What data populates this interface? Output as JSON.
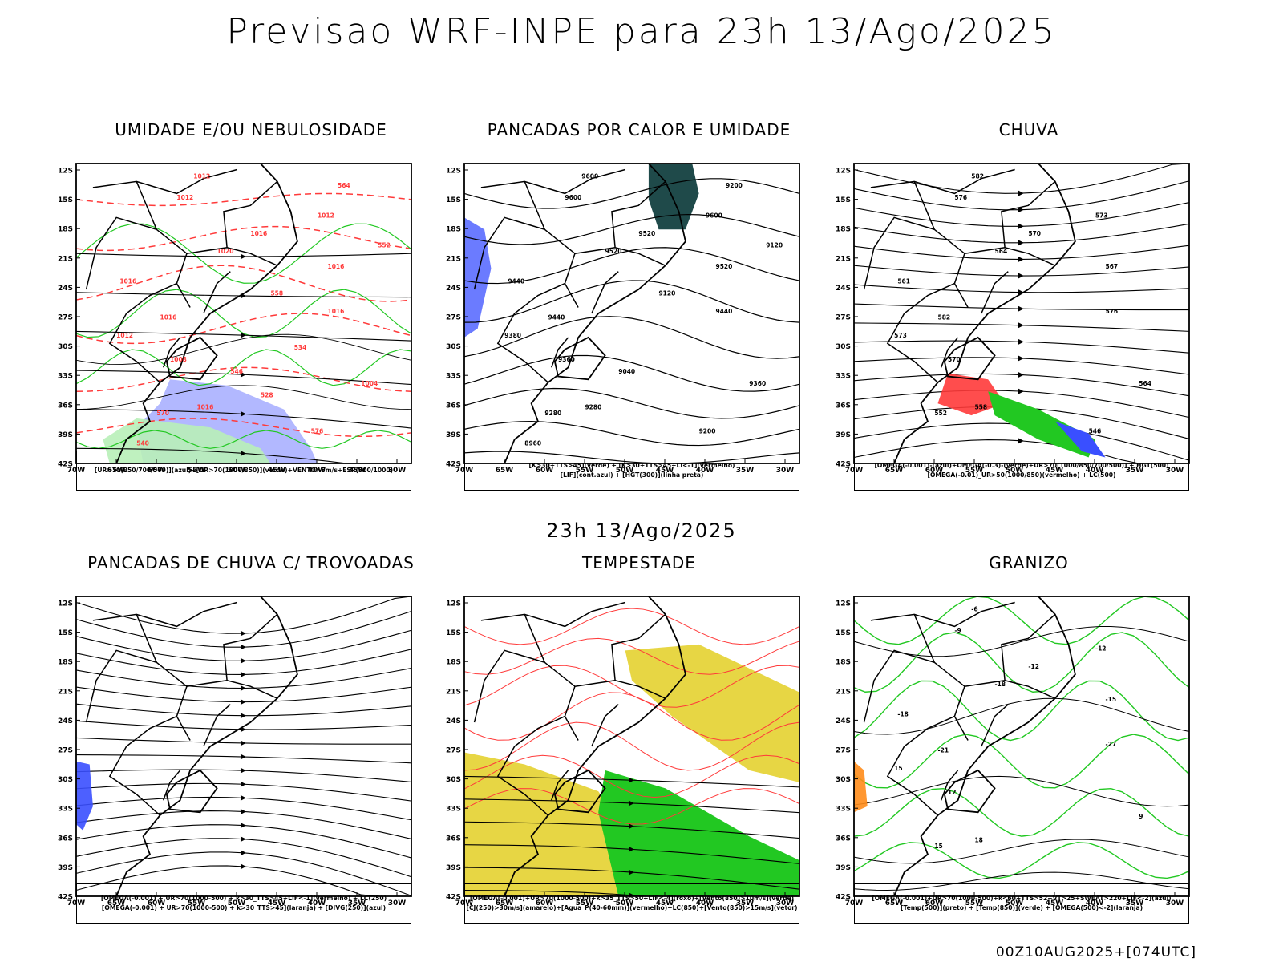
{
  "title": "Previsao WRF-INPE  para 23h 13/Ago/2025",
  "subtitle": "23h 13/Ago/2025",
  "footer": "00Z10AUG2025+[074UTC]",
  "lat_labels": [
    "12S",
    "15S",
    "18S",
    "21S",
    "24S",
    "27S",
    "30S",
    "33S",
    "36S",
    "39S",
    "42S"
  ],
  "lon_labels": [
    "70W",
    "65W",
    "60W",
    "55W",
    "50W",
    "45W",
    "40W",
    "35W",
    "30W"
  ],
  "colors": {
    "blue": "#3a4fff",
    "green": "#22c822",
    "red": "#ff3a3a",
    "yellow": "#e6d43a",
    "dark_teal": "#1f4a4a",
    "lavender": "#aab0ff",
    "orange": "#ff8c1a"
  },
  "panels": [
    {
      "title": "UMIDADE E/OU NEBULOSIDADE",
      "caption": [
        "[UR>70(850/700/500)](azul)+[UR>70(1000/850)](verde)+VENTO>5m/s+ESP(500/1000)"
      ],
      "labels": [
        "1012",
        "1012",
        "1012",
        "1016",
        "1016",
        "1020",
        "1016",
        "1016",
        "1016",
        "1012",
        "1008",
        "1004",
        "1016",
        "570",
        "576",
        "564",
        "558",
        "552",
        "546",
        "540",
        "534",
        "528"
      ]
    },
    {
      "title": "PANCADAS POR CALOR E UMIDADE",
      "caption": [
        "[K>30+TTS>45](verde) + [K>30+TTS>45+LI<-1](vermelho)",
        "[LIF](cont.azul) + [HGT(300)](linha preta)"
      ],
      "labels": [
        "9600",
        "9600",
        "9600",
        "9520",
        "9520",
        "9520",
        "9440",
        "9440",
        "9440",
        "9380",
        "9360",
        "9360",
        "9280",
        "9280",
        "9200",
        "9200",
        "9120",
        "9120",
        "9040",
        "8960"
      ]
    },
    {
      "title": "CHUVA",
      "caption": [
        "[OMEGA(-0.001)-(azul)+OMEGA(-0.3)-(verde)+UR>70(1000/850/700/500)] + HGT(500)",
        "[OMEGA(-0.01)_UR>50(1000/850)(vermelho) + LC(500)"
      ],
      "labels": [
        "582",
        "576",
        "573",
        "570",
        "567",
        "564",
        "561",
        "582",
        "576",
        "573",
        "570",
        "564",
        "558",
        "552",
        "546"
      ]
    },
    {
      "title": "PANCADAS DE CHUVA C/ TROVOADAS",
      "caption": [
        "[OMEGA(-0.001) + UR>70(1000-500) + k>30_TTS>45+LIF<-1](vermelho) + LC(250)",
        "[OMEGA(-0.001) + UR>70(1000-500) + k>30_TTS>45](laranja) + [DIVG(250)](azul)"
      ],
      "labels": []
    },
    {
      "title": "TEMPESTADE",
      "caption": [
        "[OMEGA(-0.001)+UR>70(1000-500)+k>35_TTS>50+LIF<-4](roxo)+[Vento(850)>10m/s](verde)",
        "[CJ(250)>30m/s](amarelo)+[Agua_P(40-60mm)](vermelho)+LC(850)+[Vento(850)>15m/s](vetor)"
      ],
      "labels": []
    },
    {
      "title": "GRANIZO",
      "caption": [
        "[OMEGA(-0.001)+UR>70(1000-500)+k<60+TTS>52+VT>25+SWEAT>220+LIF<-2](azul)",
        "[Temp(500)](preto) + [Temp(850)](verde) + [OMEGA(500)<-2](laranja)"
      ],
      "labels": [
        "-6",
        "-9",
        "-12",
        "-12",
        "-15",
        "-18",
        "-18",
        "-21",
        "-27",
        "15",
        "12",
        "9",
        "18",
        "15"
      ]
    }
  ]
}
